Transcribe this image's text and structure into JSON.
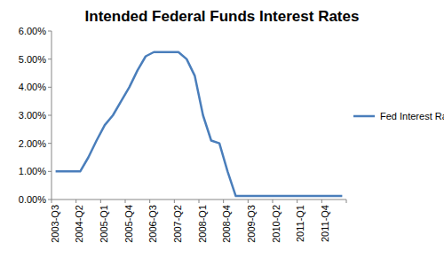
{
  "chart_data": {
    "type": "line",
    "title": "Intended Federal Funds Interest Rates",
    "categories": [
      "2003-Q3",
      null,
      null,
      "2004-Q2",
      null,
      null,
      "2005-Q1",
      null,
      null,
      "2005-Q4",
      null,
      null,
      "2006-Q3",
      null,
      null,
      "2007-Q2",
      null,
      null,
      "2008-Q1",
      null,
      null,
      "2008-Q4",
      null,
      null,
      "2009-Q3",
      null,
      null,
      "2010-Q2",
      null,
      null,
      "2011-Q1",
      null,
      null,
      "2011-Q4",
      null,
      null
    ],
    "series": [
      {
        "name": "Fed Interest Rate",
        "color": "#4a7ebb",
        "values": [
          1.0,
          1.0,
          1.0,
          1.0,
          1.5,
          2.1,
          2.65,
          3.0,
          3.5,
          4.0,
          4.6,
          5.1,
          5.25,
          5.25,
          5.25,
          5.25,
          5.0,
          4.4,
          3.0,
          2.1,
          2.0,
          1.0,
          0.125,
          0.125,
          0.125,
          0.125,
          0.125,
          0.125,
          0.125,
          0.125,
          0.125,
          0.125,
          0.125,
          0.125,
          0.125,
          0.125
        ]
      }
    ],
    "ylim": [
      0,
      6
    ],
    "yticks": [
      {
        "value": 0,
        "label": "0.00%"
      },
      {
        "value": 1,
        "label": "1.00%"
      },
      {
        "value": 2,
        "label": "2.00%"
      },
      {
        "value": 3,
        "label": "3.00%"
      },
      {
        "value": 4,
        "label": "4.00%"
      },
      {
        "value": 5,
        "label": "5.00%"
      },
      {
        "value": 6,
        "label": "6.00%"
      }
    ],
    "grid": false,
    "legend": "right"
  }
}
